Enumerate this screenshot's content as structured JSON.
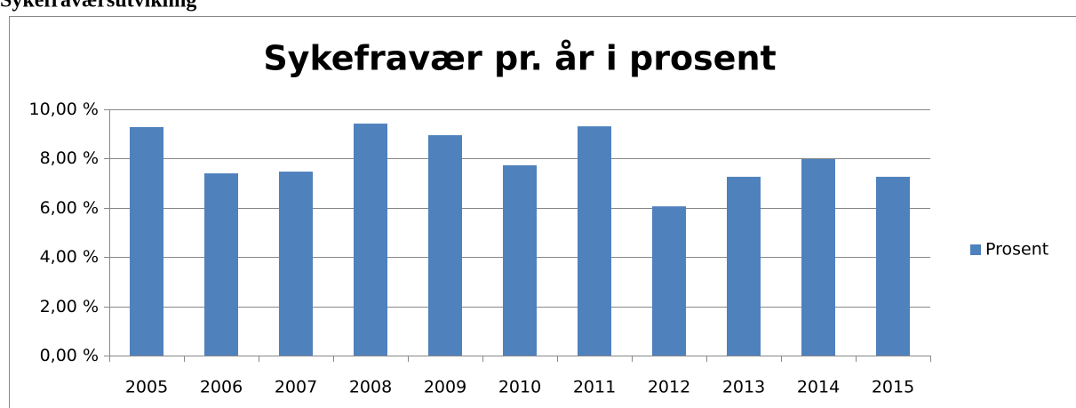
{
  "heading": "Sykefraværsutvikling",
  "chart_data": {
    "type": "bar",
    "title": "Sykefravær pr. år i prosent",
    "categories": [
      "2005",
      "2006",
      "2007",
      "2008",
      "2009",
      "2010",
      "2011",
      "2012",
      "2013",
      "2014",
      "2015"
    ],
    "series": [
      {
        "name": "Prosent",
        "color": "#4f81bd",
        "values": [
          9.28,
          7.4,
          7.47,
          9.42,
          8.95,
          7.73,
          9.31,
          6.06,
          7.26,
          7.98,
          7.26
        ]
      }
    ],
    "ylim": [
      0,
      10
    ],
    "yticks": [
      {
        "value": 0,
        "label": "0,00 %"
      },
      {
        "value": 2,
        "label": "2,00 %"
      },
      {
        "value": 4,
        "label": "4,00 %"
      },
      {
        "value": 6,
        "label": "6,00 %"
      },
      {
        "value": 8,
        "label": "8,00 %"
      },
      {
        "value": 10,
        "label": "10,00 %"
      }
    ],
    "grid": true,
    "legend": "right"
  }
}
